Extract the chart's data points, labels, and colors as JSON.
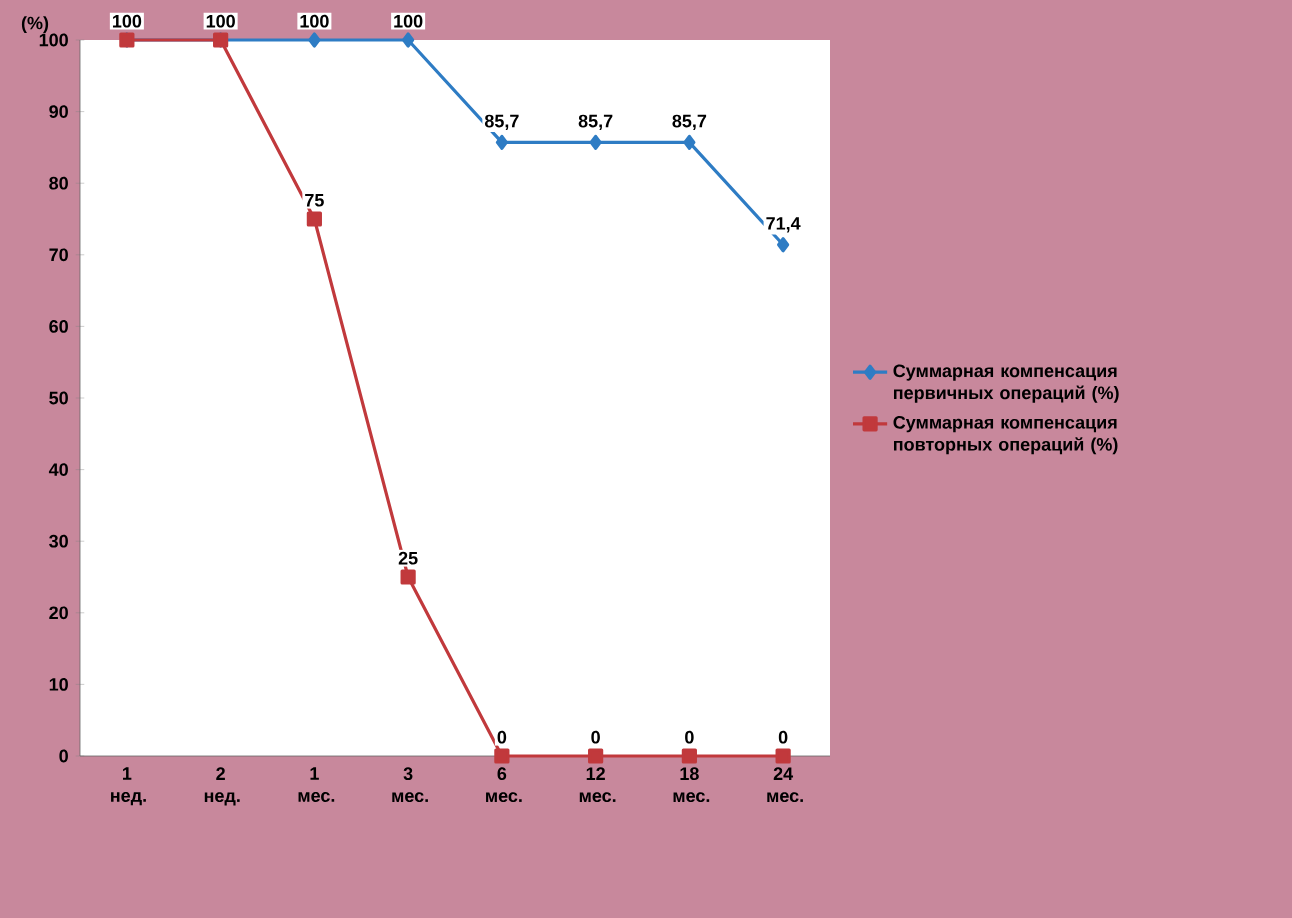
{
  "chart_data": {
    "type": "line",
    "ylabel": "(%)",
    "categories": [
      "1 нед.",
      "2 нед.",
      "1 мес.",
      "3 мес.",
      "6 мес.",
      "12 мес.",
      "18 мес.",
      "24 мес."
    ],
    "series": [
      {
        "name": "Суммарная компенсация первичных операций (%)",
        "color": "#2e7cc4",
        "marker": "diamond",
        "values": [
          100,
          100,
          100,
          100,
          85.7,
          85.7,
          85.7,
          71.4
        ],
        "value_labels": [
          "100",
          "100",
          "100",
          "100",
          "85,7",
          "85,7",
          "85,7",
          "71,4"
        ]
      },
      {
        "name": "Суммарная компенсация повторных операций (%)",
        "color": "#c1393c",
        "marker": "square",
        "values": [
          100,
          100,
          75,
          25,
          0,
          0,
          0,
          0
        ],
        "value_labels": [
          null,
          null,
          "75",
          "25",
          "0",
          "0",
          "0",
          "0"
        ]
      }
    ],
    "ylim": [
      0,
      100
    ],
    "yticks": [
      0,
      10,
      20,
      30,
      40,
      50,
      60,
      70,
      80,
      90,
      100
    ],
    "legend": "right",
    "grid": false,
    "line_style": "solid"
  }
}
